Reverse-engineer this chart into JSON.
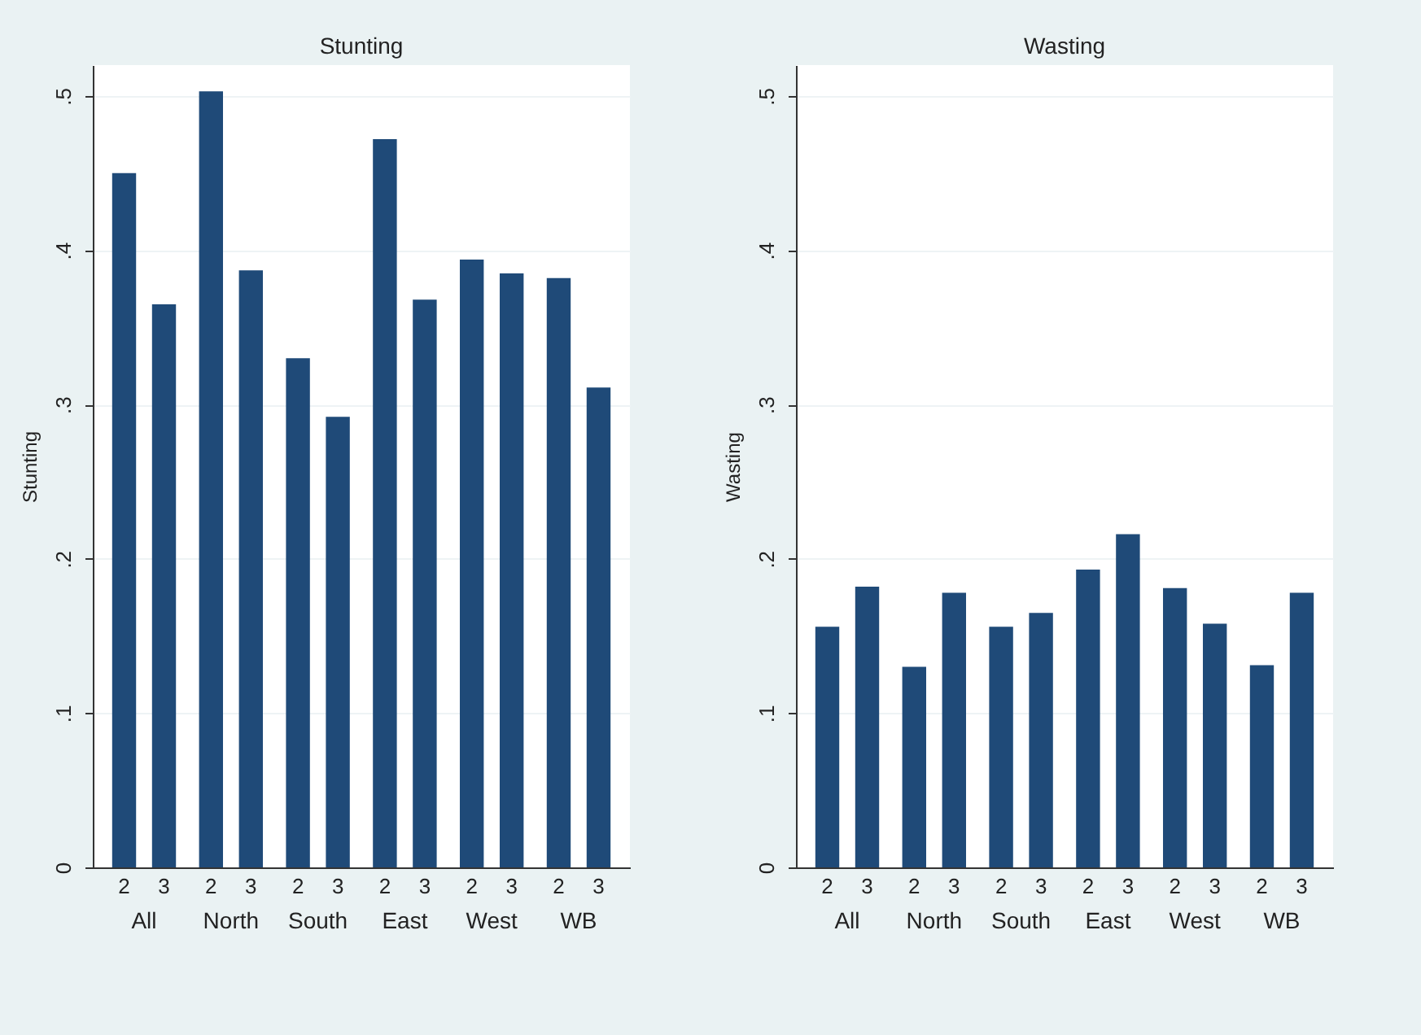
{
  "chart_data": [
    {
      "type": "bar",
      "title": "Stunting",
      "ylabel": "Stunting",
      "categories": [
        "All",
        "North",
        "South",
        "East",
        "West",
        "WB"
      ],
      "series": [
        {
          "name": "2",
          "color": "#1f4a78",
          "values": [
            0.45,
            0.503,
            0.33,
            0.472,
            0.394,
            0.382
          ]
        },
        {
          "name": "3",
          "color": "#1f4a78",
          "values": [
            0.365,
            0.387,
            0.292,
            0.368,
            0.385,
            0.311
          ]
        }
      ],
      "ylim": [
        0,
        0.52
      ],
      "yticks": [
        0,
        {
          "value": 0.1,
          "label": ".1"
        },
        {
          "value": 0.2,
          "label": ".2"
        },
        {
          "value": 0.3,
          "label": ".3"
        },
        {
          "value": 0.4,
          "label": ".4"
        },
        {
          "value": 0.5,
          "label": ".5"
        }
      ],
      "grid": "y"
    },
    {
      "type": "bar",
      "title": "Wasting",
      "ylabel": "Wasting",
      "categories": [
        "All",
        "North",
        "South",
        "East",
        "West",
        "WB"
      ],
      "series": [
        {
          "name": "2",
          "color": "#1f4a78",
          "values": [
            0.156,
            0.13,
            0.156,
            0.193,
            0.181,
            0.131
          ]
        },
        {
          "name": "3",
          "color": "#1f4a78",
          "values": [
            0.182,
            0.178,
            0.165,
            0.216,
            0.158,
            0.178
          ]
        }
      ],
      "ylim": [
        0,
        0.52
      ],
      "yticks": [
        0,
        {
          "value": 0.1,
          "label": ".1"
        },
        {
          "value": 0.2,
          "label": ".2"
        },
        {
          "value": 0.3,
          "label": ".3"
        },
        {
          "value": 0.4,
          "label": ".4"
        },
        {
          "value": 0.5,
          "label": ".5"
        }
      ],
      "grid": "y"
    }
  ]
}
